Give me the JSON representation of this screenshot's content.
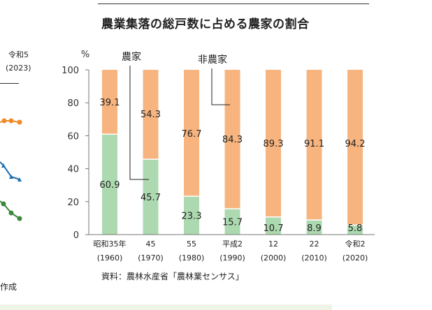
{
  "chart_title": "農業集落の総戸数に占める農家の割合",
  "left_fragment": {
    "year_label": "令和5",
    "year_paren": "(2023)",
    "bottom_text": "作成"
  },
  "source_note": "資料：農林水産省「農林業センサス」",
  "colors": {
    "farm": "#acd9b0",
    "nonfarm": "#f7b47f",
    "left_orange": "#f08a28",
    "left_blue": "#1f6fae",
    "left_green": "#3a8a3a"
  },
  "chart_data": {
    "type": "bar",
    "stacked": true,
    "unit": "%",
    "ylim": [
      0,
      100
    ],
    "yticks": [
      0,
      20,
      40,
      60,
      80,
      100
    ],
    "grid": false,
    "categories": [
      {
        "line1": "昭和35年",
        "line2": "(1960)"
      },
      {
        "line1": "45",
        "line2": "(1970)"
      },
      {
        "line1": "55",
        "line2": "(1980)"
      },
      {
        "line1": "平成2",
        "line2": "(1990)"
      },
      {
        "line1": "12",
        "line2": "(2000)"
      },
      {
        "line1": "22",
        "line2": "(2010)"
      },
      {
        "line1": "令和2",
        "line2": "(2020)"
      }
    ],
    "series": [
      {
        "name": "農家",
        "values": [
          60.9,
          45.7,
          23.3,
          15.7,
          10.7,
          8.9,
          5.8
        ]
      },
      {
        "name": "非農家",
        "values": [
          39.1,
          54.3,
          76.7,
          84.3,
          89.3,
          91.1,
          94.2
        ]
      }
    ]
  }
}
